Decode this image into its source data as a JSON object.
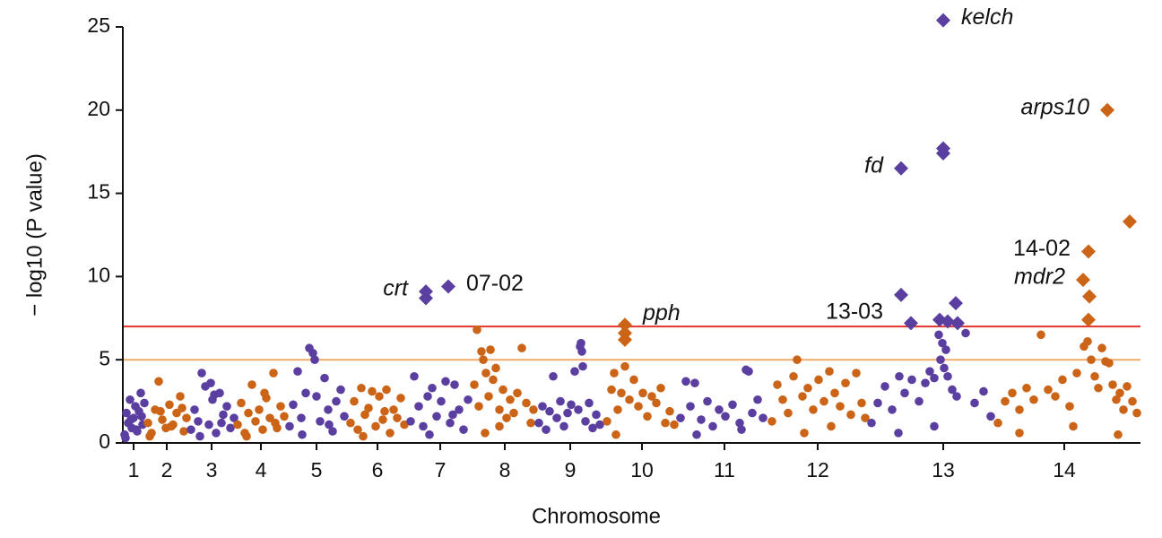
{
  "chart_data": {
    "type": "scatter",
    "xlabel": "Chromosome",
    "ylabel": "− log10 (P value)",
    "xlim": [
      0,
      1135
    ],
    "ylim": [
      0,
      25
    ],
    "yticks": [
      0,
      5,
      10,
      15,
      20,
      25
    ],
    "xticks": [
      {
        "value": 12,
        "label": "1"
      },
      {
        "value": 49,
        "label": "2"
      },
      {
        "value": 99,
        "label": "3"
      },
      {
        "value": 154,
        "label": "4"
      },
      {
        "value": 216,
        "label": "5"
      },
      {
        "value": 284,
        "label": "6"
      },
      {
        "value": 354,
        "label": "7"
      },
      {
        "value": 426,
        "label": "8"
      },
      {
        "value": 499,
        "label": "9"
      },
      {
        "value": 579,
        "label": "10"
      },
      {
        "value": 671,
        "label": "11"
      },
      {
        "value": 775,
        "label": "12"
      },
      {
        "value": 915,
        "label": "13"
      },
      {
        "value": 1050,
        "label": "14"
      }
    ],
    "grid": false,
    "thresholds": [
      {
        "value": 7,
        "color": "#e3342f"
      },
      {
        "value": 5,
        "color": "#f2aa6b"
      }
    ],
    "chromosomes": [
      {
        "color": "#5b3fa0",
        "x": [
          2,
          4,
          6,
          8,
          10,
          12,
          14,
          16,
          18,
          20,
          22,
          24,
          3,
          9,
          15,
          21
        ],
        "values": [
          0.5,
          1.8,
          1.2,
          2.6,
          0.9,
          1.5,
          2.2,
          0.7,
          1.9,
          3.0,
          1.1,
          2.4,
          0.3,
          1.4,
          0.8,
          1.6
        ]
      },
      {
        "color": "#cc6418",
        "x": [
          28,
          32,
          36,
          40,
          44,
          48,
          52,
          56,
          60,
          64,
          68,
          71,
          30,
          42,
          54,
          66
        ],
        "values": [
          1.2,
          0.6,
          2.0,
          3.7,
          1.4,
          0.9,
          2.3,
          1.1,
          1.8,
          2.8,
          0.7,
          1.5,
          0.4,
          1.9,
          1.0,
          2.1
        ]
      },
      {
        "color": "#5b3fa0",
        "x": [
          76,
          80,
          84,
          88,
          92,
          96,
          100,
          104,
          108,
          112,
          116,
          120,
          124,
          86,
          98,
          110,
          102
        ],
        "values": [
          0.8,
          2.0,
          1.3,
          4.2,
          3.4,
          1.1,
          2.6,
          0.6,
          3.0,
          1.7,
          2.2,
          0.9,
          1.5,
          0.4,
          3.6,
          1.2,
          2.9
        ]
      },
      {
        "color": "#cc6418",
        "x": [
          128,
          132,
          136,
          140,
          144,
          148,
          152,
          156,
          160,
          164,
          168,
          172,
          176,
          180,
          138,
          158,
          170
        ],
        "values": [
          1.1,
          2.4,
          0.6,
          1.8,
          3.5,
          1.3,
          2.0,
          0.8,
          2.7,
          1.5,
          4.2,
          0.9,
          2.2,
          1.6,
          0.4,
          3.0,
          1.2
        ]
      },
      {
        "color": "#5b3fa0",
        "x": [
          186,
          190,
          195,
          199,
          204,
          208,
          212,
          214,
          216,
          220,
          225,
          229,
          234,
          238,
          243,
          247,
          200,
          230
        ],
        "values": [
          1.0,
          2.3,
          4.3,
          1.5,
          3.0,
          5.7,
          5.4,
          5.0,
          2.8,
          1.3,
          3.9,
          2.0,
          0.7,
          2.5,
          3.2,
          1.6,
          0.5,
          1.1
        ]
      },
      {
        "color": "#cc6418",
        "x": [
          254,
          258,
          262,
          266,
          270,
          274,
          278,
          282,
          286,
          290,
          294,
          298,
          302,
          306,
          310,
          314,
          268,
          292
        ],
        "values": [
          1.2,
          2.5,
          0.8,
          3.3,
          1.7,
          2.1,
          3.1,
          1.0,
          2.8,
          1.4,
          3.2,
          0.6,
          2.0,
          1.5,
          2.7,
          1.1,
          0.4,
          1.9
        ]
      },
      {
        "color": "#5b3fa0",
        "x": [
          321,
          325,
          330,
          335,
          340,
          345,
          350,
          355,
          360,
          365,
          370,
          375,
          380,
          385,
          342,
          368
        ],
        "values": [
          1.3,
          4.0,
          2.2,
          1.0,
          2.8,
          3.3,
          1.6,
          2.5,
          3.7,
          1.2,
          3.5,
          2.0,
          0.8,
          2.6,
          0.5,
          1.7
        ]
      },
      {
        "color": "#cc6418",
        "x": [
          392,
          395,
          397,
          400,
          402,
          405,
          408,
          410,
          413,
          416,
          420,
          424,
          428,
          432,
          436,
          440,
          445,
          450,
          455,
          458,
          404,
          420
        ],
        "values": [
          3.5,
          6.8,
          2.2,
          5.5,
          5.0,
          4.2,
          2.8,
          5.6,
          3.8,
          4.5,
          2.0,
          3.2,
          1.5,
          2.6,
          1.8,
          3.0,
          5.7,
          2.4,
          1.2,
          2.0,
          0.6,
          1.0
        ]
      },
      {
        "color": "#5b3fa0",
        "x": [
          464,
          468,
          472,
          476,
          480,
          484,
          488,
          492,
          496,
          500,
          504,
          508,
          510,
          511,
          512,
          513,
          516,
          520,
          524,
          528,
          532
        ],
        "values": [
          1.2,
          2.2,
          0.8,
          1.9,
          4.0,
          1.5,
          2.5,
          1.0,
          1.8,
          2.3,
          4.3,
          2.0,
          5.8,
          6.0,
          5.5,
          4.6,
          1.3,
          2.4,
          0.9,
          1.7,
          1.1
        ]
      },
      {
        "color": "#cc6418",
        "x": [
          540,
          545,
          548,
          552,
          556,
          560,
          565,
          570,
          575,
          580,
          585,
          590,
          595,
          600,
          605,
          610,
          615,
          550
        ],
        "values": [
          1.3,
          3.2,
          4.2,
          2.0,
          3.0,
          4.6,
          2.6,
          3.8,
          2.2,
          3.0,
          1.6,
          2.8,
          2.4,
          3.3,
          1.2,
          1.9,
          1.1,
          0.5
        ]
      },
      {
        "color": "#5b3fa0",
        "x": [
          622,
          628,
          633,
          638,
          645,
          652,
          658,
          665,
          672,
          680,
          688,
          695,
          698,
          702,
          708,
          714,
          640,
          690
        ],
        "values": [
          1.5,
          3.7,
          2.2,
          3.6,
          1.4,
          2.5,
          1.0,
          2.0,
          1.6,
          2.3,
          1.2,
          4.4,
          4.3,
          1.8,
          2.6,
          1.5,
          0.5,
          0.8
        ]
      },
      {
        "color": "#cc6418",
        "x": [
          724,
          730,
          736,
          742,
          748,
          752,
          758,
          764,
          770,
          776,
          782,
          788,
          794,
          800,
          806,
          812,
          818,
          824,
          828,
          760,
          790
        ],
        "values": [
          1.3,
          3.5,
          2.6,
          1.8,
          4.0,
          5.0,
          2.8,
          3.3,
          2.0,
          3.8,
          2.5,
          4.3,
          3.0,
          2.2,
          3.6,
          1.7,
          4.2,
          2.4,
          1.5,
          0.6,
          1.0
        ]
      },
      {
        "color": "#5b3fa0",
        "x": [
          835,
          842,
          850,
          858,
          866,
          872,
          880,
          888,
          895,
          900,
          905,
          910,
          912,
          914,
          916,
          918,
          920,
          925,
          930,
          940,
          950,
          960,
          968,
          865,
          905
        ],
        "values": [
          1.2,
          2.4,
          3.4,
          2.0,
          4.0,
          3.0,
          3.8,
          2.5,
          3.6,
          4.3,
          3.9,
          6.5,
          5.0,
          6.0,
          4.5,
          5.6,
          4.0,
          3.2,
          2.8,
          6.6,
          2.4,
          3.1,
          1.6,
          0.6,
          1.0
        ]
      },
      {
        "color": "#cc6418",
        "x": [
          976,
          984,
          992,
          1000,
          1008,
          1016,
          1024,
          1032,
          1040,
          1048,
          1056,
          1064,
          1072,
          1076,
          1080,
          1084,
          1088,
          1092,
          1096,
          1100,
          1104,
          1108,
          1112,
          1116,
          1120,
          1126,
          1131,
          1000,
          1060,
          1110
        ],
        "values": [
          1.2,
          2.5,
          3.0,
          2.0,
          3.3,
          2.6,
          6.5,
          3.2,
          2.8,
          3.8,
          2.2,
          4.2,
          5.8,
          6.1,
          5.0,
          4.0,
          3.3,
          5.7,
          4.9,
          4.8,
          3.5,
          2.6,
          3.0,
          2.0,
          3.4,
          2.5,
          1.8,
          0.6,
          1.0,
          0.5
        ]
      }
    ],
    "loci": [
      {
        "color": "#5b3fa0",
        "marker": "diamond",
        "x": [
          338,
          338,
          363,
          868,
          868,
          879,
          915,
          915,
          915,
          911,
          920,
          929,
          931
        ],
        "values": [
          9.1,
          8.7,
          9.4,
          16.5,
          8.9,
          7.2,
          25.4,
          17.7,
          17.4,
          7.4,
          7.3,
          8.4,
          7.2
        ]
      },
      {
        "color": "#cc6418",
        "marker": "diamond",
        "x": [
          560,
          560,
          560,
          1098,
          1123,
          1077,
          1071,
          1078,
          1077
        ],
        "values": [
          7.1,
          6.6,
          6.2,
          20.0,
          13.3,
          11.5,
          9.8,
          8.8,
          7.4
        ]
      }
    ],
    "annotations": [
      {
        "text": "crt",
        "series": 0,
        "point": 0,
        "side": "left",
        "valign": "middle",
        "italic": true
      },
      {
        "text": "07-02",
        "series": 0,
        "point": 2,
        "side": "right",
        "valign": "middle",
        "italic": false
      },
      {
        "text": "pph",
        "series": 1,
        "point": 0,
        "side": "right",
        "valign": "above",
        "italic": true
      },
      {
        "text": "fd",
        "series": 0,
        "point": 3,
        "side": "left",
        "valign": "middle",
        "italic": true
      },
      {
        "text": "13-03",
        "series": 0,
        "point": 4,
        "side": "left",
        "valign": "below",
        "italic": false
      },
      {
        "text": "kelch",
        "series": 0,
        "point": 6,
        "side": "right",
        "valign": "middle",
        "italic": true
      },
      {
        "text": "arps10",
        "series": 1,
        "point": 3,
        "side": "left",
        "valign": "middle",
        "italic": true
      },
      {
        "text": "14-02",
        "series": 1,
        "point": 5,
        "side": "left",
        "valign": "middle",
        "italic": false
      },
      {
        "text": "mdr2",
        "series": 1,
        "point": 6,
        "side": "left",
        "valign": "middle",
        "italic": true
      }
    ]
  }
}
